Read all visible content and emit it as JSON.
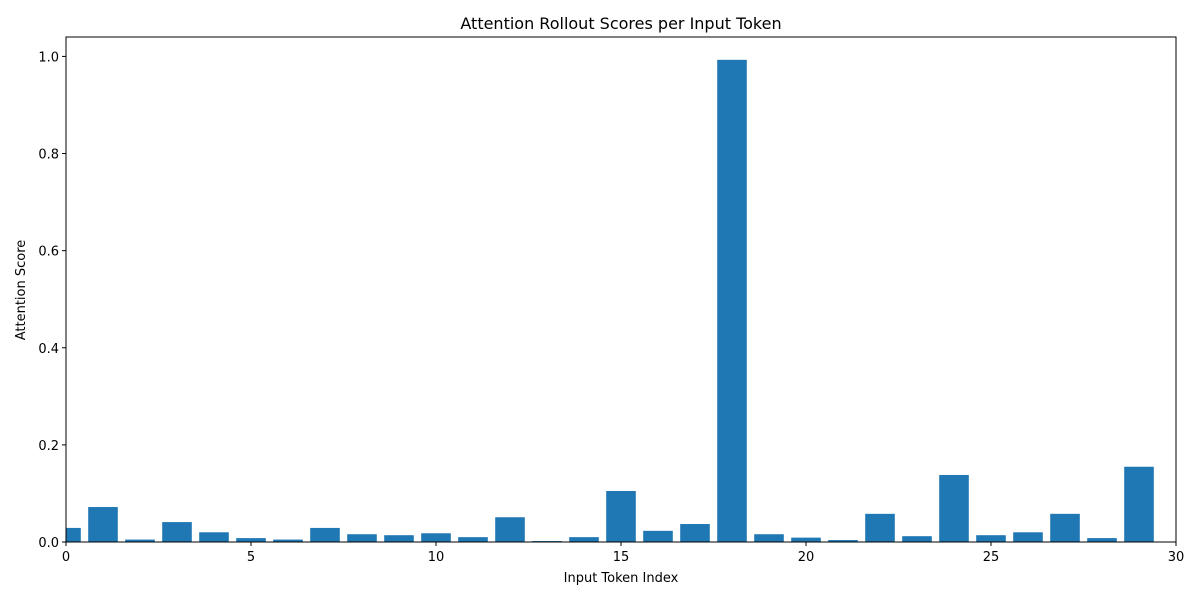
{
  "chart_data": {
    "type": "bar",
    "title": "Attention Rollout Scores per Input Token",
    "xlabel": "Input Token Index",
    "ylabel": "Attention Score",
    "x": [
      0,
      1,
      2,
      3,
      4,
      5,
      6,
      7,
      8,
      9,
      10,
      11,
      12,
      13,
      14,
      15,
      16,
      17,
      18,
      19,
      20,
      21,
      22,
      23,
      24,
      25,
      26,
      27,
      28,
      29
    ],
    "values": [
      0.029,
      0.072,
      0.005,
      0.041,
      0.02,
      0.008,
      0.005,
      0.029,
      0.016,
      0.014,
      0.018,
      0.01,
      0.051,
      0.002,
      0.01,
      0.105,
      0.023,
      0.037,
      0.993,
      0.016,
      0.009,
      0.004,
      0.058,
      0.012,
      0.138,
      0.014,
      0.02,
      0.058,
      0.008,
      0.155
    ],
    "xlim": [
      0,
      30
    ],
    "ylim": [
      0,
      1.04
    ],
    "xticks": [
      "0",
      "5",
      "10",
      "15",
      "20",
      "25",
      "30"
    ],
    "yticks": [
      "0.0",
      "0.2",
      "0.4",
      "0.6",
      "0.8",
      "1.0"
    ],
    "bar_color": "#1f77b4",
    "grid": false,
    "legend": "none"
  }
}
